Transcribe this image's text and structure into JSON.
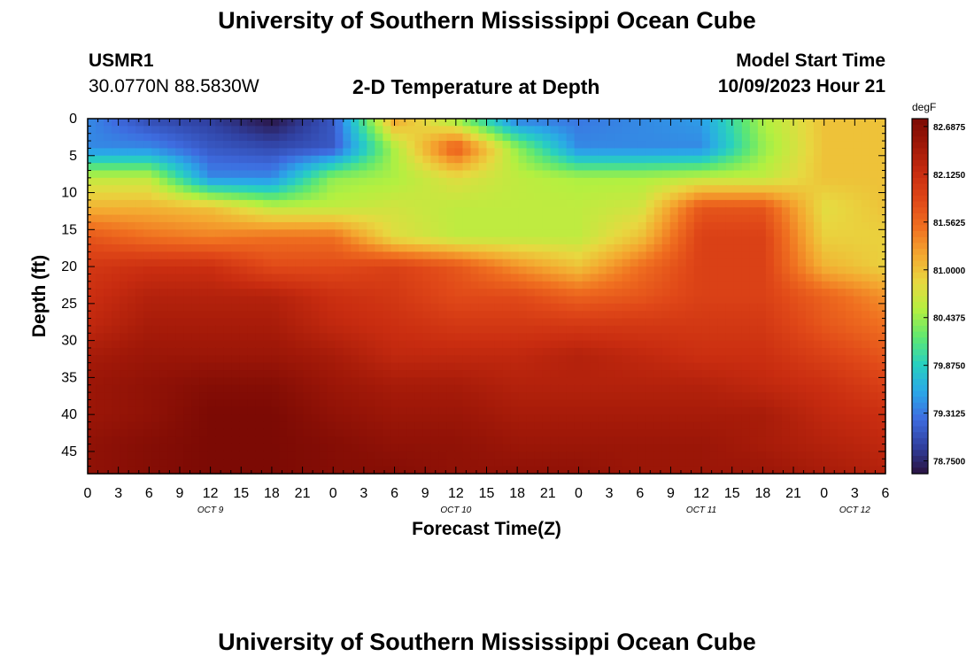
{
  "page": {
    "title": "University of Southern Mississippi Ocean Cube",
    "footer_title": "University of Southern Mississippi Ocean Cube"
  },
  "header": {
    "station": "USMR1",
    "coords": "30.0770N  88.5830W",
    "chart_title": "2-D Temperature at Depth",
    "model_label": "Model Start Time",
    "model_time": "10/09/2023 Hour 21"
  },
  "chart_data": {
    "type": "heatmap",
    "title": "2-D Temperature at Depth",
    "xlabel": "Forecast Time(Z)",
    "ylabel": "Depth (ft)",
    "x_hours_range": [
      0,
      78
    ],
    "y_range": [
      0,
      48
    ],
    "y_inverted": true,
    "x_tick_labels": [
      "0",
      "3",
      "6",
      "9",
      "12",
      "15",
      "18",
      "21",
      "0",
      "3",
      "6",
      "9",
      "12",
      "15",
      "18",
      "21",
      "0",
      "3",
      "6",
      "9",
      "12",
      "15",
      "18",
      "21",
      "0",
      "3",
      "6"
    ],
    "y_ticks": [
      0,
      5,
      10,
      15,
      20,
      25,
      30,
      35,
      40,
      45
    ],
    "day_labels": [
      {
        "text": "OCT 9",
        "hour": 12
      },
      {
        "text": "OCT 10",
        "hour": 36
      },
      {
        "text": "OCT 11",
        "hour": 60
      },
      {
        "text": "OCT 12",
        "hour": 75
      }
    ],
    "colorbar": {
      "unit": "degF",
      "min": 78.6,
      "max": 82.78,
      "tick_labels": [
        "82.6875",
        "82.1250",
        "81.5625",
        "81.0000",
        "80.4375",
        "79.8750",
        "79.3125",
        "78.7500"
      ],
      "tick_values": [
        82.6875,
        82.125,
        81.5625,
        81.0,
        80.4375,
        79.875,
        79.3125,
        78.75
      ],
      "colors": [
        "#2a1240",
        "#3040a0",
        "#3e6ce0",
        "#2aa8e8",
        "#28d0c0",
        "#60e870",
        "#b4f040",
        "#e8d840",
        "#f4a830",
        "#f07020",
        "#e04818",
        "#c82c10",
        "#a01808",
        "#7c0a04"
      ]
    },
    "grid": false,
    "legend": "colorbar-right",
    "x_hours": [
      0,
      6,
      12,
      18,
      24,
      30,
      36,
      42,
      48,
      54,
      60,
      66,
      72,
      78
    ],
    "depths_ft": [
      0,
      4,
      8,
      12,
      16,
      20,
      24,
      28,
      32,
      36,
      40,
      44,
      48
    ],
    "values": [
      [
        79.4,
        79.0,
        78.9,
        78.6,
        79.1,
        81.2,
        80.4,
        79.3,
        79.3,
        79.4,
        79.5,
        80.5,
        81.0,
        81.0
      ],
      [
        79.4,
        79.4,
        79.1,
        79.0,
        79.1,
        80.5,
        81.7,
        80.4,
        79.4,
        79.4,
        79.4,
        80.4,
        81.0,
        81.0
      ],
      [
        80.6,
        80.6,
        79.4,
        79.4,
        80.4,
        80.5,
        80.8,
        80.6,
        80.5,
        80.5,
        80.6,
        80.6,
        81.0,
        81.0
      ],
      [
        81.1,
        81.1,
        81.0,
        80.6,
        80.6,
        80.7,
        80.6,
        80.6,
        80.6,
        80.7,
        81.7,
        81.7,
        80.8,
        81.0
      ],
      [
        81.7,
        81.5,
        81.4,
        81.5,
        81.5,
        80.8,
        80.6,
        80.6,
        80.6,
        81.0,
        81.9,
        81.9,
        80.9,
        80.9
      ],
      [
        82.0,
        82.1,
        82.1,
        81.8,
        81.8,
        81.9,
        81.7,
        81.3,
        81.0,
        81.5,
        81.9,
        81.9,
        81.1,
        80.9
      ],
      [
        82.1,
        82.3,
        82.3,
        82.3,
        82.1,
        82.0,
        81.8,
        81.8,
        81.6,
        81.7,
        81.9,
        81.9,
        81.6,
        81.3
      ],
      [
        82.2,
        82.4,
        82.4,
        82.4,
        82.2,
        82.1,
        82.0,
        82.0,
        82.0,
        82.0,
        82.0,
        82.0,
        81.7,
        81.5
      ],
      [
        82.4,
        82.5,
        82.5,
        82.5,
        82.4,
        82.2,
        82.2,
        82.2,
        82.3,
        82.2,
        82.1,
        82.1,
        81.9,
        81.7
      ],
      [
        82.5,
        82.6,
        82.7,
        82.7,
        82.5,
        82.4,
        82.4,
        82.3,
        82.3,
        82.3,
        82.3,
        82.2,
        82.1,
        81.9
      ],
      [
        82.5,
        82.6,
        82.78,
        82.78,
        82.6,
        82.5,
        82.5,
        82.4,
        82.4,
        82.4,
        82.4,
        82.4,
        82.2,
        82.1
      ],
      [
        82.6,
        82.7,
        82.78,
        82.78,
        82.7,
        82.6,
        82.6,
        82.5,
        82.5,
        82.5,
        82.5,
        82.4,
        82.3,
        82.2
      ],
      [
        82.6,
        82.7,
        82.78,
        82.78,
        82.7,
        82.7,
        82.6,
        82.6,
        82.6,
        82.5,
        82.5,
        82.5,
        82.4,
        82.3
      ]
    ]
  }
}
